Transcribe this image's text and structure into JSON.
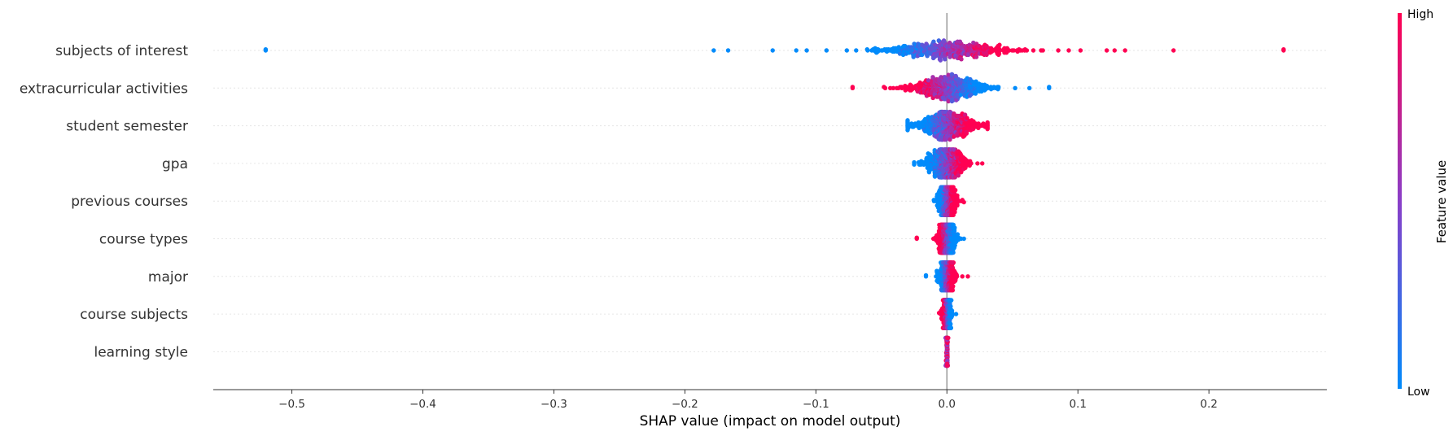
{
  "chart_data": {
    "type": "scatter",
    "subtype": "shap-beeswarm",
    "title": "",
    "xlabel": "SHAP value (impact on model output)",
    "xlim": [
      -0.56,
      0.29
    ],
    "xticks": [
      -0.5,
      -0.4,
      -0.3,
      -0.2,
      -0.1,
      0.0,
      0.1,
      0.2
    ],
    "xtick_labels": [
      "−0.5",
      "−0.4",
      "−0.3",
      "−0.2",
      "−0.1",
      "0.0",
      "0.1",
      "0.2"
    ],
    "grid": false,
    "zero_line": true,
    "features": [
      {
        "name": "subjects of interest",
        "min": -0.52,
        "max": 0.257,
        "spread": 0.048,
        "color_trend": "high_right",
        "outliers": [
          -0.52,
          -0.178,
          -0.167,
          -0.133,
          -0.115,
          -0.107,
          0.085,
          0.093,
          0.102,
          0.122,
          0.128,
          0.136,
          0.173,
          0.257
        ]
      },
      {
        "name": "extracurricular activities",
        "min": -0.072,
        "max": 0.078,
        "spread": 0.03,
        "color_trend": "high_left",
        "outliers": [
          -0.072,
          0.063,
          0.078
        ]
      },
      {
        "name": "student semester",
        "min": -0.03,
        "max": 0.031,
        "spread": 0.022,
        "color_trend": "high_right",
        "outliers": []
      },
      {
        "name": "gpa",
        "min": -0.025,
        "max": 0.027,
        "spread": 0.015,
        "color_trend": "high_right",
        "outliers": []
      },
      {
        "name": "previous courses",
        "min": -0.01,
        "max": 0.013,
        "spread": 0.006,
        "color_trend": "high_right",
        "outliers": []
      },
      {
        "name": "course types",
        "min": -0.023,
        "max": 0.013,
        "spread": 0.006,
        "color_trend": "high_left",
        "outliers": [
          -0.023
        ]
      },
      {
        "name": "major",
        "min": -0.016,
        "max": 0.016,
        "spread": 0.005,
        "color_trend": "high_right",
        "outliers": [
          -0.016
        ]
      },
      {
        "name": "course subjects",
        "min": -0.006,
        "max": 0.007,
        "spread": 0.003,
        "color_trend": "high_left",
        "outliers": []
      },
      {
        "name": "learning style",
        "min": -0.001,
        "max": 0.001,
        "spread": 0.0005,
        "color_trend": "mixed",
        "outliers": []
      }
    ],
    "colorbar": {
      "title": "Feature value",
      "high_label": "High",
      "low_label": "Low",
      "low_color": "#008bfb",
      "mid_color": "#8a3ec8",
      "high_color": "#ff0052"
    },
    "colors": {
      "zero_line": "#999999",
      "row_grid": "#e6e6e6",
      "axis": "#333333"
    }
  }
}
